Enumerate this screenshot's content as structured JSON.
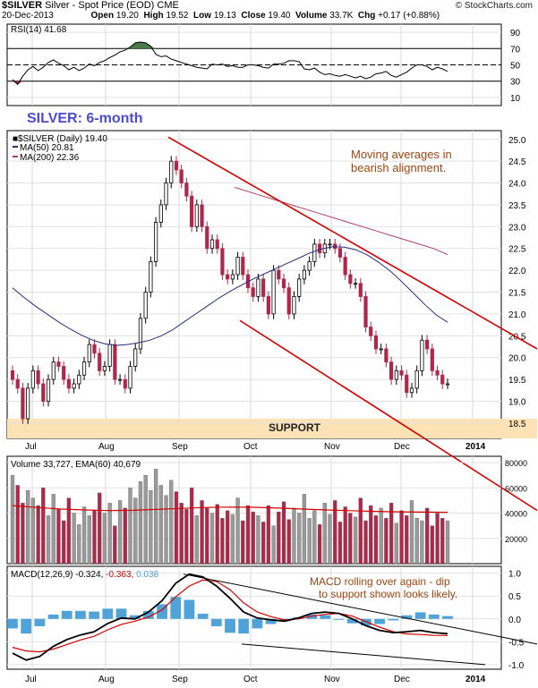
{
  "header": {
    "symbol": "$SILVER",
    "description": "Silver - Spot Price (EOD)",
    "exchange": "CME",
    "watermark": "© StockCharts.com",
    "date": "20-Dec-2013",
    "open_label": "Open",
    "open": "19.20",
    "high_label": "High",
    "high": "19.52",
    "low_label": "Low",
    "low": "19.13",
    "close_label": "Close",
    "close": "19.40",
    "volume_label": "Volume",
    "volume": "33.7K",
    "chg_label": "Chg",
    "chg": "+0.17 (+0.88%)"
  },
  "colors": {
    "up": "#9a9a9a",
    "down": "#b0274a",
    "ma50": "#2b2b7a",
    "ma200": "#b04060",
    "channel": "#d40000",
    "support_band": "#fde2b6",
    "title": "#4b4bd6",
    "annotation": "#a0470f",
    "macd_hist": "#4fa3d9",
    "rsi_fill": "#4a7a4a"
  },
  "chart_data": [
    {
      "type": "line",
      "panel": "RSI",
      "legend": "RSI(14) 41.68",
      "y_ticks": [
        "90",
        "70",
        "50",
        "30",
        "10"
      ],
      "ylim": [
        0,
        100
      ],
      "reference_lines": [
        70,
        50,
        30
      ],
      "series": [
        {
          "name": "RSI(14)",
          "values": [
            32,
            26,
            36,
            44,
            48,
            43,
            47,
            53,
            56,
            52,
            49,
            44,
            47,
            43,
            46,
            51,
            49,
            53,
            55,
            59,
            62,
            66,
            68,
            72,
            77,
            78,
            77,
            73,
            63,
            60,
            61,
            57,
            55,
            53,
            51,
            49,
            47,
            46,
            45,
            51,
            50,
            51,
            48,
            49,
            47,
            47,
            50,
            50,
            49,
            47,
            46,
            51,
            51,
            52,
            55,
            55,
            54,
            45,
            44,
            46,
            41,
            38,
            39,
            37,
            36,
            38,
            36,
            34,
            36,
            33,
            35,
            39,
            40,
            42,
            37,
            35,
            38,
            41,
            46,
            50,
            50,
            48,
            44,
            47,
            45,
            42
          ]
        }
      ]
    },
    {
      "type": "candlestick",
      "panel": "price",
      "title": "SILVER: 6-month",
      "legend": [
        "$SILVER (Daily) 19.40",
        "MA(50) 20.81",
        "MA(200) 22.36"
      ],
      "x_ticks": [
        "Jul",
        "Aug",
        "Sep",
        "Oct",
        "Nov",
        "Dec",
        "2014"
      ],
      "y_ticks": [
        "25.0",
        "24.5",
        "24.0",
        "23.5",
        "23.0",
        "22.5",
        "22.0",
        "21.5",
        "21.0",
        "20.5",
        "20.0",
        "19.5",
        "19.0",
        "18.5"
      ],
      "ylim": [
        18.15,
        25.2
      ],
      "close": [
        19.5,
        19.3,
        18.6,
        19.3,
        19.7,
        19.4,
        19.0,
        19.5,
        19.9,
        19.8,
        19.5,
        19.3,
        19.4,
        19.6,
        19.9,
        20.3,
        20.1,
        19.7,
        19.8,
        20.3,
        19.5,
        19.5,
        19.3,
        19.8,
        20.2,
        20.9,
        21.5,
        22.2,
        23.1,
        23.5,
        24.0,
        24.5,
        24.3,
        24.0,
        23.7,
        23.0,
        23.5,
        23.0,
        22.5,
        22.7,
        22.5,
        21.9,
        21.8,
        21.9,
        22.3,
        21.9,
        21.6,
        21.4,
        21.8,
        21.4,
        21.0,
        22.0,
        21.8,
        21.6,
        21.0,
        21.4,
        21.8,
        22.0,
        22.2,
        22.6,
        22.4,
        22.6,
        22.6,
        22.5,
        22.3,
        21.9,
        21.7,
        21.7,
        21.4,
        20.7,
        20.5,
        20.2,
        20.2,
        19.9,
        19.5,
        19.7,
        19.6,
        19.2,
        19.3,
        19.7,
        20.4,
        20.2,
        19.7,
        19.6,
        19.4,
        19.4
      ],
      "moving_averages": [
        {
          "name": "MA(50)",
          "values": [
            21.6,
            21.38,
            21.18,
            21.0,
            20.82,
            20.66,
            20.52,
            20.4,
            20.32,
            20.28,
            20.3,
            20.34,
            20.4,
            20.5,
            20.64,
            20.82,
            21.0,
            21.18,
            21.36,
            21.52,
            21.66,
            21.8,
            21.92,
            22.04,
            22.16,
            22.28,
            22.4,
            22.49,
            22.54,
            22.53,
            22.47,
            22.35,
            22.18,
            21.98,
            21.74,
            21.48,
            21.22,
            20.98,
            20.81
          ]
        },
        {
          "name": "MA(200)",
          "values": [
            23.9,
            23.8,
            23.7,
            23.6,
            23.5,
            23.4,
            23.3,
            23.2,
            23.1,
            23.0,
            22.9,
            22.8,
            22.7,
            22.6,
            22.5,
            22.36
          ]
        }
      ],
      "channel_lines": [
        {
          "from": [
            "Sep",
            25.05
          ],
          "to": [
            "2014+",
            20.2
          ]
        },
        {
          "from": [
            "Oct",
            20.85
          ],
          "to": [
            "2014+",
            16.5
          ]
        }
      ],
      "support_zone": {
        "label": "SUPPORT",
        "range": [
          18.15,
          18.6
        ]
      },
      "annotations": [
        "Moving averages in",
        "bearish alignment."
      ]
    },
    {
      "type": "bar",
      "panel": "volume",
      "legend": "Volume 33,727, EMA(60) 40,679",
      "y_ticks": [
        "80000",
        "60000",
        "40000",
        "20000"
      ],
      "ylim": [
        0,
        85000
      ],
      "values": [
        70000,
        62000,
        48000,
        58000,
        52000,
        46000,
        60000,
        38000,
        55000,
        43000,
        34000,
        52000,
        40000,
        31000,
        45000,
        38000,
        42000,
        56000,
        40000,
        48000,
        30000,
        50000,
        44000,
        60000,
        52000,
        65000,
        70000,
        58000,
        75000,
        62000,
        54000,
        66000,
        57000,
        48000,
        43000,
        60000,
        38000,
        50000,
        44000,
        40000,
        47000,
        36000,
        42000,
        39000,
        52000,
        34000,
        46000,
        41000,
        38000,
        33000,
        46000,
        30000,
        41000,
        49000,
        35000,
        44000,
        40000,
        55000,
        36000,
        42000,
        31000,
        48000,
        39000,
        50000,
        33000,
        45000,
        40000,
        37000,
        52000,
        34000,
        46000,
        38000,
        44000,
        36000,
        48000,
        32000,
        42000,
        38000,
        50000,
        36000,
        34000,
        44000,
        30000,
        40000,
        36000,
        34000
      ],
      "ema": {
        "name": "EMA(60)",
        "values": [
          46000,
          44500,
          43200,
          42500,
          42000,
          42200,
          43000,
          43800,
          44500,
          44800,
          44600,
          44000,
          43200,
          42500,
          41900,
          41400,
          41000,
          40800,
          40679
        ]
      }
    },
    {
      "type": "line",
      "panel": "MACD",
      "legend": [
        "MACD(12,26,9)",
        "-0.324",
        "-0.363",
        "0.038"
      ],
      "y_ticks": [
        "1.0",
        "0.5",
        "0.0",
        "-0.5",
        "-1.0"
      ],
      "ylim": [
        -1.1,
        1.15
      ],
      "series": [
        {
          "name": "MACD(12,26,9)",
          "values": [
            -0.75,
            -0.9,
            -0.82,
            -0.6,
            -0.45,
            -0.35,
            -0.28,
            -0.1,
            0.02,
            0.0,
            0.15,
            0.4,
            0.78,
            0.98,
            0.92,
            0.72,
            0.45,
            0.15,
            0.02,
            -0.02,
            -0.05,
            0.02,
            0.12,
            0.15,
            0.12,
            0.0,
            -0.15,
            -0.25,
            -0.3,
            -0.28,
            -0.25,
            -0.3,
            -0.324
          ]
        },
        {
          "name": "signal",
          "values": [
            -0.62,
            -0.7,
            -0.72,
            -0.66,
            -0.56,
            -0.46,
            -0.38,
            -0.24,
            -0.12,
            -0.05,
            0.04,
            0.2,
            0.48,
            0.72,
            0.85,
            0.82,
            0.64,
            0.35,
            0.15,
            0.05,
            -0.02,
            0.0,
            0.06,
            0.1,
            0.12,
            0.06,
            -0.06,
            -0.18,
            -0.28,
            -0.33,
            -0.34,
            -0.36,
            -0.363
          ]
        }
      ],
      "histogram_name": "histogram",
      "trend_lines": [
        {
          "from": [
            "Sep",
            0.98
          ],
          "to": [
            "2014+",
            -0.55
          ]
        },
        {
          "from": [
            "Oct",
            -0.55
          ],
          "to": [
            "2014",
            -1.0
          ]
        }
      ],
      "annotations": [
        "MACD rolling over again - dip",
        "to support shown looks likely."
      ]
    }
  ]
}
